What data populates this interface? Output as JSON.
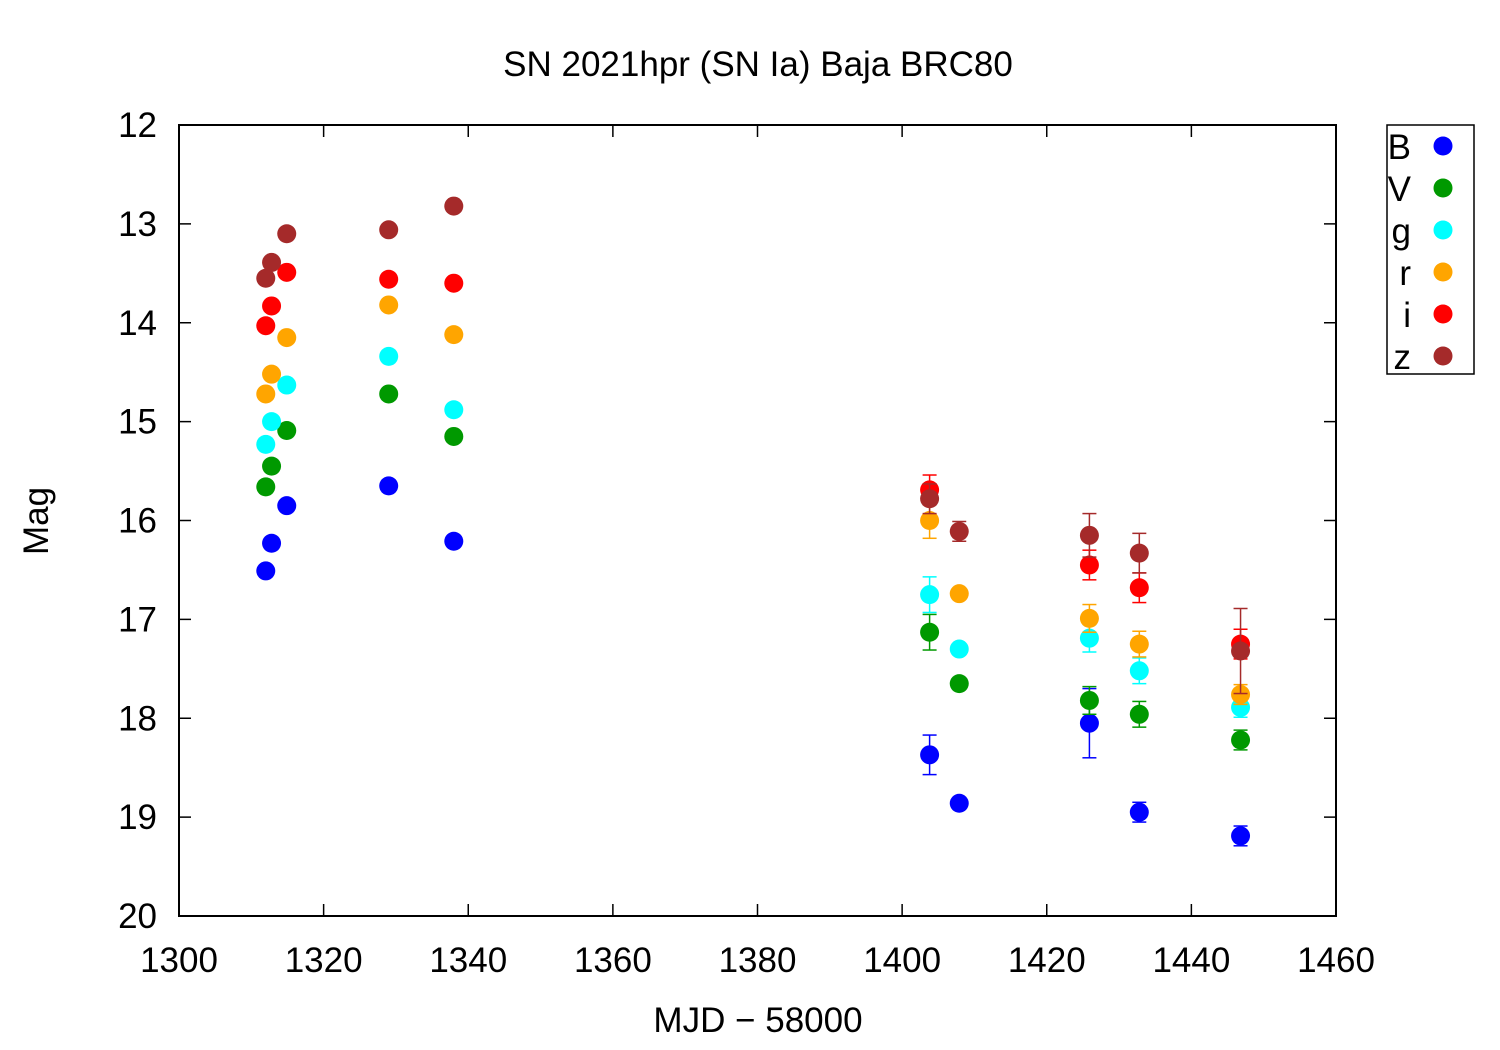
{
  "chart_data": {
    "type": "scatter",
    "title": "SN 2021hpr (SN Ia) Baja BRC80",
    "xlabel": "MJD − 58000",
    "ylabel": "Mag",
    "xlim": [
      1300,
      1460
    ],
    "ylim": [
      12,
      20
    ],
    "y_inverted": true,
    "x_ticks": [
      1300,
      1320,
      1340,
      1360,
      1380,
      1400,
      1420,
      1440,
      1460
    ],
    "y_ticks": [
      12,
      13,
      14,
      15,
      16,
      17,
      18,
      19,
      20
    ],
    "grid": false,
    "legend_position": "outside-right-top",
    "series": [
      {
        "name": "B",
        "color": "#0000ff",
        "points": [
          {
            "x": 1312.0,
            "y": 16.51,
            "err": 0
          },
          {
            "x": 1312.8,
            "y": 16.23,
            "err": 0
          },
          {
            "x": 1314.9,
            "y": 15.85,
            "err": 0
          },
          {
            "x": 1329.0,
            "y": 15.65,
            "err": 0
          },
          {
            "x": 1338.0,
            "y": 16.21,
            "err": 0
          },
          {
            "x": 1403.8,
            "y": 18.37,
            "err": 0.2
          },
          {
            "x": 1407.9,
            "y": 18.86,
            "err": 0.04
          },
          {
            "x": 1425.9,
            "y": 18.05,
            "err": 0.35
          },
          {
            "x": 1432.8,
            "y": 18.95,
            "err": 0.1
          },
          {
            "x": 1446.8,
            "y": 19.19,
            "err": 0.1
          }
        ]
      },
      {
        "name": "V",
        "color": "#009900",
        "points": [
          {
            "x": 1312.0,
            "y": 15.66,
            "err": 0
          },
          {
            "x": 1312.8,
            "y": 15.45,
            "err": 0
          },
          {
            "x": 1314.9,
            "y": 15.09,
            "err": 0
          },
          {
            "x": 1329.0,
            "y": 14.72,
            "err": 0
          },
          {
            "x": 1338.0,
            "y": 15.15,
            "err": 0
          },
          {
            "x": 1403.8,
            "y": 17.13,
            "err": 0.18
          },
          {
            "x": 1407.9,
            "y": 17.65,
            "err": 0.04
          },
          {
            "x": 1425.9,
            "y": 17.82,
            "err": 0.14
          },
          {
            "x": 1432.8,
            "y": 17.96,
            "err": 0.13
          },
          {
            "x": 1446.8,
            "y": 18.22,
            "err": 0.1
          }
        ]
      },
      {
        "name": "g",
        "color": "#00ffff",
        "points": [
          {
            "x": 1312.0,
            "y": 15.23,
            "err": 0
          },
          {
            "x": 1312.8,
            "y": 15.0,
            "err": 0
          },
          {
            "x": 1314.9,
            "y": 14.63,
            "err": 0
          },
          {
            "x": 1329.0,
            "y": 14.34,
            "err": 0
          },
          {
            "x": 1338.0,
            "y": 14.88,
            "err": 0
          },
          {
            "x": 1403.8,
            "y": 16.75,
            "err": 0.18
          },
          {
            "x": 1407.9,
            "y": 17.3,
            "err": 0.04
          },
          {
            "x": 1425.9,
            "y": 17.19,
            "err": 0.14
          },
          {
            "x": 1432.8,
            "y": 17.52,
            "err": 0.13
          },
          {
            "x": 1446.8,
            "y": 17.89,
            "err": 0.1
          }
        ]
      },
      {
        "name": "r",
        "color": "#ffa500",
        "points": [
          {
            "x": 1312.0,
            "y": 14.72,
            "err": 0
          },
          {
            "x": 1312.8,
            "y": 14.52,
            "err": 0
          },
          {
            "x": 1314.9,
            "y": 14.15,
            "err": 0
          },
          {
            "x": 1329.0,
            "y": 13.82,
            "err": 0
          },
          {
            "x": 1338.0,
            "y": 14.12,
            "err": 0
          },
          {
            "x": 1403.8,
            "y": 16.0,
            "err": 0.18
          },
          {
            "x": 1407.9,
            "y": 16.74,
            "err": 0.04
          },
          {
            "x": 1425.9,
            "y": 16.99,
            "err": 0.14
          },
          {
            "x": 1432.8,
            "y": 17.25,
            "err": 0.13
          },
          {
            "x": 1446.8,
            "y": 17.76,
            "err": 0.1
          }
        ]
      },
      {
        "name": "i",
        "color": "#ff0000",
        "points": [
          {
            "x": 1312.0,
            "y": 14.03,
            "err": 0
          },
          {
            "x": 1312.8,
            "y": 13.83,
            "err": 0
          },
          {
            "x": 1314.9,
            "y": 13.49,
            "err": 0
          },
          {
            "x": 1329.0,
            "y": 13.56,
            "err": 0
          },
          {
            "x": 1338.0,
            "y": 13.6,
            "err": 0
          },
          {
            "x": 1403.8,
            "y": 15.69,
            "err": 0.15
          },
          {
            "x": 1425.9,
            "y": 16.45,
            "err": 0.15
          },
          {
            "x": 1432.8,
            "y": 16.68,
            "err": 0.15
          },
          {
            "x": 1446.8,
            "y": 17.25,
            "err": 0.15
          }
        ]
      },
      {
        "name": "z",
        "color": "#a52a2a",
        "points": [
          {
            "x": 1312.0,
            "y": 13.55,
            "err": 0
          },
          {
            "x": 1312.8,
            "y": 13.39,
            "err": 0
          },
          {
            "x": 1314.9,
            "y": 13.1,
            "err": 0
          },
          {
            "x": 1329.0,
            "y": 13.06,
            "err": 0
          },
          {
            "x": 1338.0,
            "y": 12.82,
            "err": 0
          },
          {
            "x": 1403.8,
            "y": 15.78,
            "err": 0.15
          },
          {
            "x": 1407.9,
            "y": 16.11,
            "err": 0.1
          },
          {
            "x": 1425.9,
            "y": 16.15,
            "err": 0.22
          },
          {
            "x": 1432.8,
            "y": 16.33,
            "err": 0.2
          },
          {
            "x": 1446.8,
            "y": 17.32,
            "err": 0.43
          }
        ]
      }
    ]
  }
}
